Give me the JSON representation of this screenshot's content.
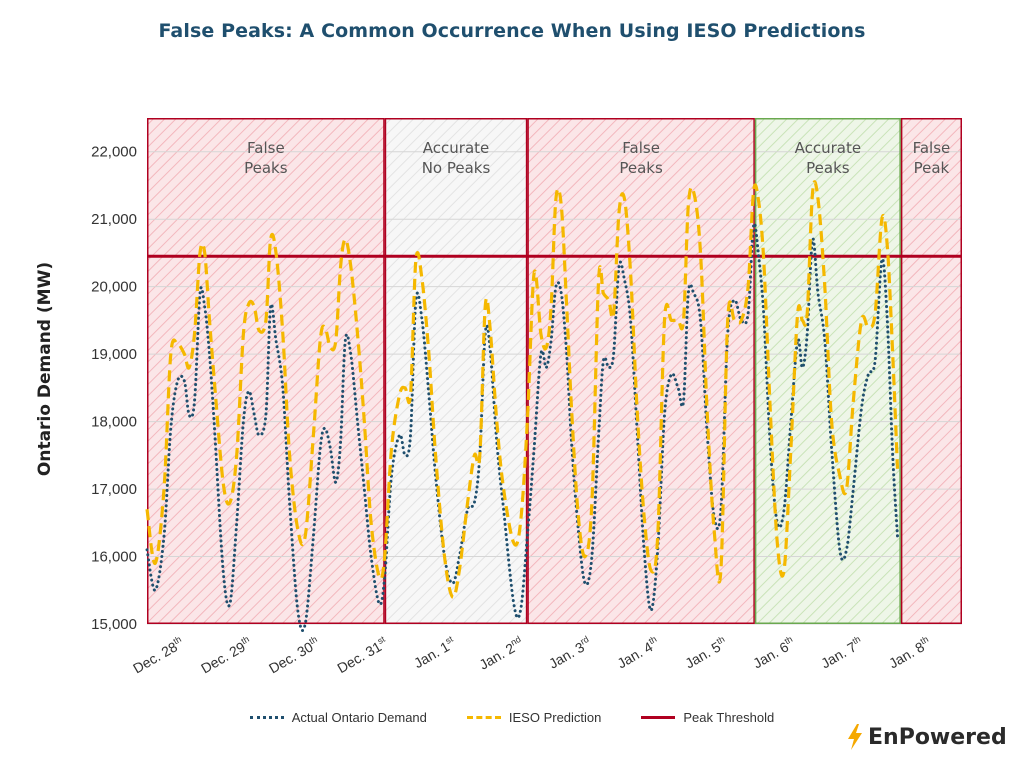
{
  "title": "False Peaks: A Common Occurrence When Using IESO Predictions",
  "brand": {
    "name": "EnPowered",
    "icon": "lightning-bolt-icon",
    "icon_color": "#f5a800"
  },
  "legend": [
    {
      "label": "Actual Ontario Demand",
      "style": "dotted",
      "color": "#1f4f6e"
    },
    {
      "label": "IESO Prediction",
      "style": "dashed",
      "color": "#f5b800"
    },
    {
      "label": "Peak Threshold",
      "style": "solid",
      "color": "#b00020"
    }
  ],
  "chart_data": {
    "type": "line",
    "ylabel": "Ontario Demand (MW)",
    "ylim": [
      15000,
      22500
    ],
    "yticks": [
      "15,000",
      "16,000",
      "17,000",
      "18,000",
      "19,000",
      "20,000",
      "21,000",
      "22,000"
    ],
    "xlim": [
      0,
      12
    ],
    "xticks": [
      {
        "x": 0.5,
        "base": "Dec. 28",
        "sup": "th"
      },
      {
        "x": 1.5,
        "base": "Dec. 29",
        "sup": "th"
      },
      {
        "x": 2.5,
        "base": "Dec. 30",
        "sup": "th"
      },
      {
        "x": 3.5,
        "base": "Dec. 31",
        "sup": "st"
      },
      {
        "x": 4.5,
        "base": "Jan. 1",
        "sup": "st"
      },
      {
        "x": 5.5,
        "base": "Jan. 2",
        "sup": "nd"
      },
      {
        "x": 6.5,
        "base": "Jan. 3",
        "sup": "rd"
      },
      {
        "x": 7.5,
        "base": "Jan. 4",
        "sup": "th"
      },
      {
        "x": 8.5,
        "base": "Jan. 5",
        "sup": "th"
      },
      {
        "x": 9.5,
        "base": "Jan. 6",
        "sup": "th"
      },
      {
        "x": 10.5,
        "base": "Jan. 7",
        "sup": "th"
      },
      {
        "x": 11.5,
        "base": "Jan. 8",
        "sup": "th"
      }
    ],
    "grid": true,
    "legend_position": "bottom",
    "peak_threshold": 20450,
    "regions": [
      {
        "x0": 0,
        "x1": 3.5,
        "label": [
          "False",
          "Peaks"
        ],
        "kind": "false",
        "fill": "#f9d9dc",
        "edge": "#b00020"
      },
      {
        "x0": 3.5,
        "x1": 5.6,
        "label": [
          "Accurate",
          "No Peaks"
        ],
        "kind": "accurate-none",
        "fill": "#eeeeee",
        "edge": "#b00020"
      },
      {
        "x0": 5.6,
        "x1": 8.95,
        "label": [
          "False",
          "Peaks"
        ],
        "kind": "false",
        "fill": "#f9d9dc",
        "edge": "#b00020"
      },
      {
        "x0": 8.95,
        "x1": 11.1,
        "label": [
          "Accurate",
          "Peaks"
        ],
        "kind": "accurate",
        "fill": "#dcecd2",
        "edge": "#6aa84f"
      },
      {
        "x0": 11.1,
        "x1": 12,
        "label": [
          "False",
          "Peak"
        ],
        "kind": "false",
        "fill": "#f9d9dc",
        "edge": "#b00020"
      }
    ],
    "series": [
      {
        "name": "Actual Ontario Demand",
        "style": "dotted",
        "color": "#1f4f6e",
        "points": [
          [
            0.0,
            16100
          ],
          [
            0.12,
            15500
          ],
          [
            0.25,
            16300
          ],
          [
            0.35,
            17900
          ],
          [
            0.45,
            18600
          ],
          [
            0.55,
            18600
          ],
          [
            0.62,
            18100
          ],
          [
            0.7,
            18300
          ],
          [
            0.78,
            19900
          ],
          [
            0.85,
            19700
          ],
          [
            0.92,
            19000
          ],
          [
            1.0,
            17800
          ],
          [
            1.12,
            15800
          ],
          [
            1.22,
            15300
          ],
          [
            1.32,
            16500
          ],
          [
            1.42,
            18000
          ],
          [
            1.5,
            18450
          ],
          [
            1.58,
            18100
          ],
          [
            1.65,
            17800
          ],
          [
            1.75,
            18100
          ],
          [
            1.82,
            19700
          ],
          [
            1.9,
            19200
          ],
          [
            2.0,
            18500
          ],
          [
            2.1,
            16800
          ],
          [
            2.22,
            15200
          ],
          [
            2.33,
            15000
          ],
          [
            2.45,
            16300
          ],
          [
            2.55,
            17600
          ],
          [
            2.62,
            17900
          ],
          [
            2.7,
            17600
          ],
          [
            2.78,
            17100
          ],
          [
            2.85,
            17700
          ],
          [
            2.92,
            19200
          ],
          [
            3.0,
            19000
          ],
          [
            3.1,
            18000
          ],
          [
            3.2,
            17000
          ],
          [
            3.3,
            16000
          ],
          [
            3.42,
            15300
          ],
          [
            3.5,
            15700
          ],
          [
            3.6,
            17200
          ],
          [
            3.72,
            17800
          ],
          [
            3.8,
            17500
          ],
          [
            3.88,
            17800
          ],
          [
            3.96,
            19800
          ],
          [
            4.05,
            19500
          ],
          [
            4.15,
            18400
          ],
          [
            4.25,
            17200
          ],
          [
            4.38,
            16000
          ],
          [
            4.5,
            15600
          ],
          [
            4.6,
            16000
          ],
          [
            4.72,
            16700
          ],
          [
            4.82,
            16800
          ],
          [
            4.9,
            17500
          ],
          [
            4.98,
            19300
          ],
          [
            5.05,
            19100
          ],
          [
            5.15,
            17700
          ],
          [
            5.25,
            16700
          ],
          [
            5.4,
            15300
          ],
          [
            5.5,
            15200
          ],
          [
            5.6,
            16300
          ],
          [
            5.7,
            17600
          ],
          [
            5.8,
            19000
          ],
          [
            5.88,
            18800
          ],
          [
            5.95,
            19200
          ],
          [
            6.02,
            20000
          ],
          [
            6.1,
            19900
          ],
          [
            6.18,
            19000
          ],
          [
            6.25,
            17700
          ],
          [
            6.35,
            16400
          ],
          [
            6.45,
            15600
          ],
          [
            6.55,
            16000
          ],
          [
            6.65,
            17800
          ],
          [
            6.72,
            18900
          ],
          [
            6.8,
            18800
          ],
          [
            6.87,
            19000
          ],
          [
            6.95,
            20300
          ],
          [
            7.03,
            20100
          ],
          [
            7.12,
            19500
          ],
          [
            7.22,
            17800
          ],
          [
            7.32,
            16100
          ],
          [
            7.42,
            15200
          ],
          [
            7.52,
            16100
          ],
          [
            7.62,
            18100
          ],
          [
            7.72,
            18700
          ],
          [
            7.82,
            18500
          ],
          [
            7.9,
            18300
          ],
          [
            7.97,
            19900
          ],
          [
            8.05,
            19900
          ],
          [
            8.15,
            19500
          ],
          [
            8.25,
            17800
          ],
          [
            8.35,
            16600
          ],
          [
            8.45,
            16700
          ],
          [
            8.55,
            19300
          ],
          [
            8.65,
            19800
          ],
          [
            8.75,
            19500
          ],
          [
            8.85,
            19600
          ],
          [
            8.93,
            20900
          ],
          [
            9.0,
            20500
          ],
          [
            9.08,
            19600
          ],
          [
            9.18,
            17600
          ],
          [
            9.28,
            16500
          ],
          [
            9.38,
            16700
          ],
          [
            9.48,
            18000
          ],
          [
            9.58,
            19200
          ],
          [
            9.65,
            18800
          ],
          [
            9.72,
            19300
          ],
          [
            9.8,
            20700
          ],
          [
            9.88,
            19900
          ],
          [
            9.98,
            19200
          ],
          [
            10.08,
            17600
          ],
          [
            10.2,
            16100
          ],
          [
            10.3,
            16100
          ],
          [
            10.4,
            17000
          ],
          [
            10.52,
            18200
          ],
          [
            10.62,
            18700
          ],
          [
            10.72,
            18900
          ],
          [
            10.82,
            20400
          ],
          [
            10.9,
            19500
          ],
          [
            10.98,
            17500
          ],
          [
            11.05,
            16300
          ]
        ]
      },
      {
        "name": "IESO Prediction",
        "style": "dashed",
        "color": "#f5b800",
        "points": [
          [
            0.0,
            16700
          ],
          [
            0.12,
            15900
          ],
          [
            0.25,
            17000
          ],
          [
            0.35,
            19000
          ],
          [
            0.45,
            19150
          ],
          [
            0.55,
            19000
          ],
          [
            0.62,
            18800
          ],
          [
            0.7,
            19300
          ],
          [
            0.78,
            20500
          ],
          [
            0.85,
            20500
          ],
          [
            0.92,
            19500
          ],
          [
            1.0,
            18500
          ],
          [
            1.12,
            17100
          ],
          [
            1.22,
            16800
          ],
          [
            1.32,
            17500
          ],
          [
            1.42,
            19300
          ],
          [
            1.5,
            19750
          ],
          [
            1.58,
            19700
          ],
          [
            1.65,
            19350
          ],
          [
            1.75,
            19500
          ],
          [
            1.82,
            20700
          ],
          [
            1.9,
            20500
          ],
          [
            2.0,
            19300
          ],
          [
            2.1,
            17500
          ],
          [
            2.22,
            16400
          ],
          [
            2.33,
            16300
          ],
          [
            2.45,
            17800
          ],
          [
            2.55,
            19200
          ],
          [
            2.62,
            19400
          ],
          [
            2.7,
            19100
          ],
          [
            2.78,
            19200
          ],
          [
            2.85,
            20300
          ],
          [
            2.92,
            20700
          ],
          [
            3.0,
            20300
          ],
          [
            3.1,
            19300
          ],
          [
            3.2,
            18000
          ],
          [
            3.3,
            16500
          ],
          [
            3.42,
            15700
          ],
          [
            3.5,
            16000
          ],
          [
            3.6,
            17600
          ],
          [
            3.72,
            18400
          ],
          [
            3.8,
            18500
          ],
          [
            3.88,
            18400
          ],
          [
            3.96,
            20400
          ],
          [
            4.05,
            20100
          ],
          [
            4.15,
            19000
          ],
          [
            4.25,
            17500
          ],
          [
            4.38,
            16000
          ],
          [
            4.5,
            15400
          ],
          [
            4.6,
            15800
          ],
          [
            4.72,
            16800
          ],
          [
            4.82,
            17500
          ],
          [
            4.9,
            17500
          ],
          [
            4.98,
            19700
          ],
          [
            5.05,
            19400
          ],
          [
            5.15,
            18000
          ],
          [
            5.25,
            17000
          ],
          [
            5.4,
            16200
          ],
          [
            5.5,
            16500
          ],
          [
            5.6,
            18000
          ],
          [
            5.7,
            20200
          ],
          [
            5.8,
            19300
          ],
          [
            5.88,
            19100
          ],
          [
            5.95,
            19700
          ],
          [
            6.02,
            21300
          ],
          [
            6.1,
            21200
          ],
          [
            6.18,
            19700
          ],
          [
            6.25,
            18200
          ],
          [
            6.35,
            16600
          ],
          [
            6.45,
            16000
          ],
          [
            6.55,
            16800
          ],
          [
            6.65,
            20100
          ],
          [
            6.72,
            19900
          ],
          [
            6.8,
            19800
          ],
          [
            6.87,
            19600
          ],
          [
            6.95,
            21100
          ],
          [
            7.03,
            21300
          ],
          [
            7.12,
            20200
          ],
          [
            7.22,
            18100
          ],
          [
            7.32,
            16600
          ],
          [
            7.42,
            15800
          ],
          [
            7.52,
            16300
          ],
          [
            7.62,
            19500
          ],
          [
            7.72,
            19500
          ],
          [
            7.82,
            19500
          ],
          [
            7.9,
            19500
          ],
          [
            7.97,
            21200
          ],
          [
            8.05,
            21400
          ],
          [
            8.15,
            20500
          ],
          [
            8.25,
            18100
          ],
          [
            8.35,
            16400
          ],
          [
            8.45,
            15800
          ],
          [
            8.55,
            19500
          ],
          [
            8.65,
            19500
          ],
          [
            8.75,
            19500
          ],
          [
            8.85,
            20000
          ],
          [
            8.93,
            21400
          ],
          [
            9.0,
            21300
          ],
          [
            9.08,
            20400
          ],
          [
            9.18,
            18100
          ],
          [
            9.28,
            16200
          ],
          [
            9.38,
            15800
          ],
          [
            9.48,
            17600
          ],
          [
            9.58,
            19600
          ],
          [
            9.65,
            19500
          ],
          [
            9.72,
            19600
          ],
          [
            9.8,
            21400
          ],
          [
            9.88,
            21300
          ],
          [
            9.98,
            20000
          ],
          [
            10.08,
            18000
          ],
          [
            10.2,
            17200
          ],
          [
            10.3,
            17000
          ],
          [
            10.4,
            18300
          ],
          [
            10.52,
            19500
          ],
          [
            10.62,
            19400
          ],
          [
            10.72,
            19600
          ],
          [
            10.82,
            21000
          ],
          [
            10.9,
            20600
          ],
          [
            10.98,
            19000
          ],
          [
            11.05,
            17300
          ]
        ]
      }
    ]
  }
}
